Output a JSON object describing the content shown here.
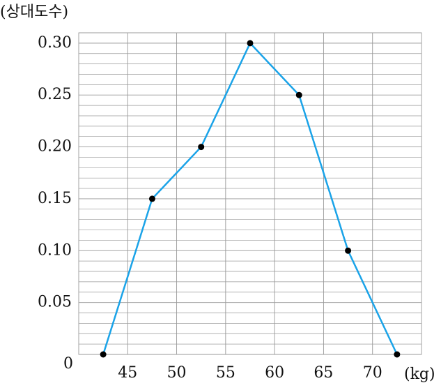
{
  "chart_data": {
    "type": "line",
    "ylabel": "(상대도수)",
    "xlabel": "(kg)",
    "x": [
      42.5,
      47.5,
      52.5,
      57.5,
      62.5,
      67.5,
      72.5
    ],
    "series": [
      {
        "color": "#1aa3e8",
        "values": [
          0,
          0.15,
          0.2,
          0.3,
          0.25,
          0.1,
          0
        ]
      }
    ],
    "xlim": [
      40,
      75
    ],
    "ylim": [
      0,
      0.31
    ],
    "xticks": [
      45,
      50,
      55,
      60,
      65,
      70
    ],
    "yticks": [
      0,
      {
        "value": 0.05,
        "label": "0.05"
      },
      {
        "value": 0.1,
        "label": "0.10"
      },
      {
        "value": 0.15,
        "label": "0.15"
      },
      {
        "value": 0.2,
        "label": "0.20"
      },
      {
        "value": 0.25,
        "label": "0.25"
      },
      {
        "value": 0.3,
        "label": "0.30"
      }
    ],
    "yminorticks": [
      0.01,
      0.02,
      0.03,
      0.04,
      0.06,
      0.07,
      0.08,
      0.09,
      0.11,
      0.12,
      0.13,
      0.14,
      0.16,
      0.17,
      0.18,
      0.19,
      0.21,
      0.22,
      0.23,
      0.24,
      0.26,
      0.27,
      0.28,
      0.29,
      0.31
    ],
    "grid": true
  }
}
